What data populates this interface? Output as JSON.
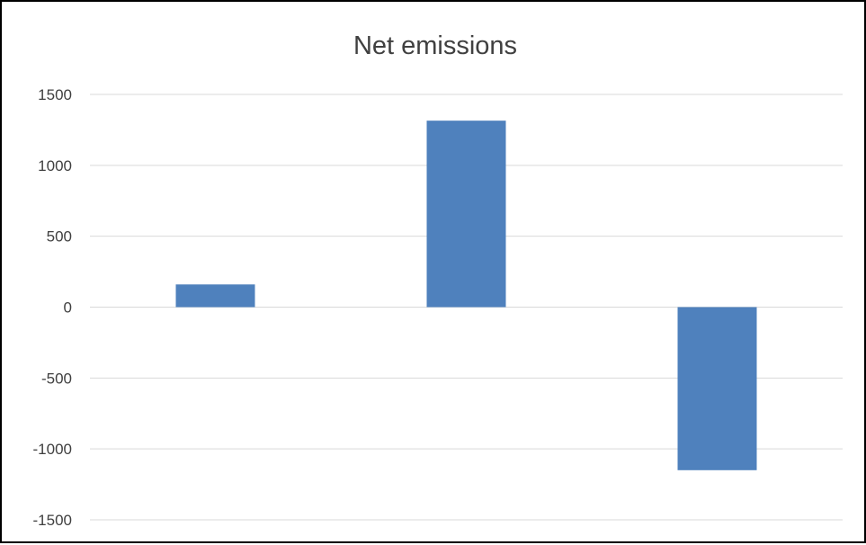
{
  "chart_data": {
    "type": "bar",
    "title": "Net emissions",
    "categories": [
      "",
      "",
      ""
    ],
    "values": [
      160,
      1315,
      -1150
    ],
    "ylim": [
      -1500,
      1500
    ],
    "yticks": [
      1500,
      1000,
      500,
      0,
      -500,
      -1000,
      -1500
    ],
    "ytick_labels": [
      "1500",
      "1000",
      "500",
      "0",
      "-500",
      "-1000",
      "-1500"
    ],
    "grid": true,
    "legend": "none",
    "bar_color": "#4f81bd",
    "grid_color": "#d9d9d9",
    "text_color": "#404040"
  }
}
